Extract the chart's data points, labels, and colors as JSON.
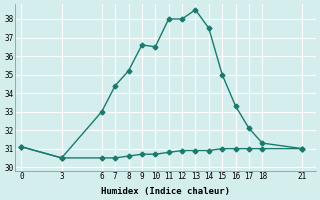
{
  "xlabel": "Humidex (Indice chaleur)",
  "ylabel": "",
  "bg_color": "#d4eeee",
  "grid_color": "#ffffff",
  "line_color": "#1a7a6e",
  "x_ticks": [
    0,
    3,
    6,
    7,
    8,
    9,
    10,
    11,
    12,
    13,
    14,
    15,
    16,
    17,
    18,
    21
  ],
  "ylim": [
    30,
    38.5
  ],
  "yticks": [
    30,
    31,
    32,
    33,
    34,
    35,
    36,
    37,
    38
  ],
  "line1_x": [
    0,
    3,
    6,
    7,
    8,
    9,
    10,
    11,
    12,
    13,
    14,
    15,
    16,
    17,
    18,
    21
  ],
  "line1_y": [
    31.1,
    30.5,
    33.0,
    34.4,
    35.2,
    36.6,
    36.5,
    38.0,
    38.0,
    38.5,
    37.5,
    35.0,
    33.3,
    32.1,
    31.3,
    31.0
  ],
  "line2_x": [
    0,
    3,
    6,
    7,
    8,
    9,
    10,
    11,
    12,
    13,
    14,
    15,
    16,
    17,
    18,
    21
  ],
  "line2_y": [
    31.1,
    30.5,
    30.5,
    30.5,
    30.6,
    30.7,
    30.7,
    30.8,
    30.9,
    30.9,
    30.9,
    31.0,
    31.0,
    31.0,
    31.0,
    31.0
  ]
}
